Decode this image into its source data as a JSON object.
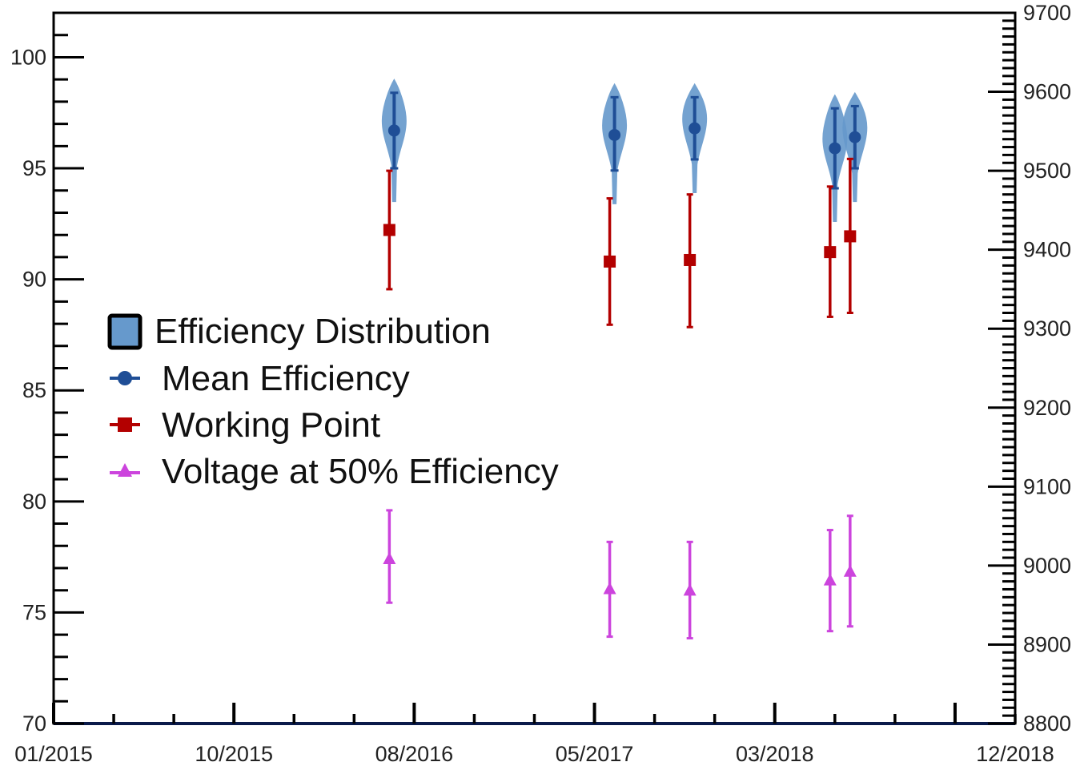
{
  "chart_data": {
    "type": "scatter",
    "title": "",
    "xlabel": "",
    "ylabel": "",
    "y2label": "",
    "x_ticks": [
      "01/2015",
      "10/2015",
      "08/2016",
      "05/2017",
      "03/2018",
      "12/2018"
    ],
    "ylim": [
      70,
      102
    ],
    "y_ticks": [
      "70",
      "75",
      "80",
      "85",
      "90",
      "95",
      "100"
    ],
    "y2lim": [
      8800,
      9700
    ],
    "y2_ticks": [
      "8800",
      "8900",
      "9000",
      "9100",
      "9200",
      "9300",
      "9400",
      "9500",
      "9600",
      "9700"
    ],
    "grid": false,
    "legend_position": "left",
    "colors": {
      "distribution": "#6699cc",
      "mean": "#1f4e96",
      "working_point": "#b30000",
      "voltage": "#cc44dd",
      "axis": "#000000"
    },
    "legend": [
      {
        "label": "Efficiency Distribution",
        "marker": "box"
      },
      {
        "label": "Mean Efficiency",
        "marker": "circle"
      },
      {
        "label": "Working Point",
        "marker": "square"
      },
      {
        "label": "Voltage at 50% Efficiency",
        "marker": "triangle"
      }
    ],
    "series": [
      {
        "name": "Mean Efficiency",
        "axis": "left",
        "points": [
          {
            "x": "2016-06",
            "y": 96.7,
            "err_low": 95.0,
            "err_high": 98.4
          },
          {
            "x": "2017-05",
            "y": 96.5,
            "err_low": 94.9,
            "err_high": 98.2
          },
          {
            "x": "2017-09",
            "y": 96.8,
            "err_low": 95.4,
            "err_high": 98.2
          },
          {
            "x": "2018-04",
            "y": 95.9,
            "err_low": 94.1,
            "err_high": 97.7
          },
          {
            "x": "2018-05",
            "y": 96.4,
            "err_low": 95.0,
            "err_high": 97.8
          }
        ]
      },
      {
        "name": "Working Point",
        "axis": "right",
        "points": [
          {
            "x": "2016-06",
            "y": 9425,
            "err_low": 9350,
            "err_high": 9500
          },
          {
            "x": "2017-05",
            "y": 9385,
            "err_low": 9305,
            "err_high": 9465
          },
          {
            "x": "2017-09",
            "y": 9387,
            "err_low": 9302,
            "err_high": 9470
          },
          {
            "x": "2018-04",
            "y": 9397,
            "err_low": 9315,
            "err_high": 9480
          },
          {
            "x": "2018-05",
            "y": 9417,
            "err_low": 9320,
            "err_high": 9515
          }
        ]
      },
      {
        "name": "Voltage at 50% Efficiency",
        "axis": "right",
        "points": [
          {
            "x": "2016-06",
            "y": 9008,
            "err_low": 8953,
            "err_high": 9070
          },
          {
            "x": "2017-05",
            "y": 8970,
            "err_low": 8910,
            "err_high": 9030
          },
          {
            "x": "2017-09",
            "y": 8968,
            "err_low": 8908,
            "err_high": 9030
          },
          {
            "x": "2018-04",
            "y": 8981,
            "err_low": 8917,
            "err_high": 9045
          },
          {
            "x": "2018-05",
            "y": 8992,
            "err_low": 8923,
            "err_high": 9063
          }
        ]
      }
    ]
  }
}
